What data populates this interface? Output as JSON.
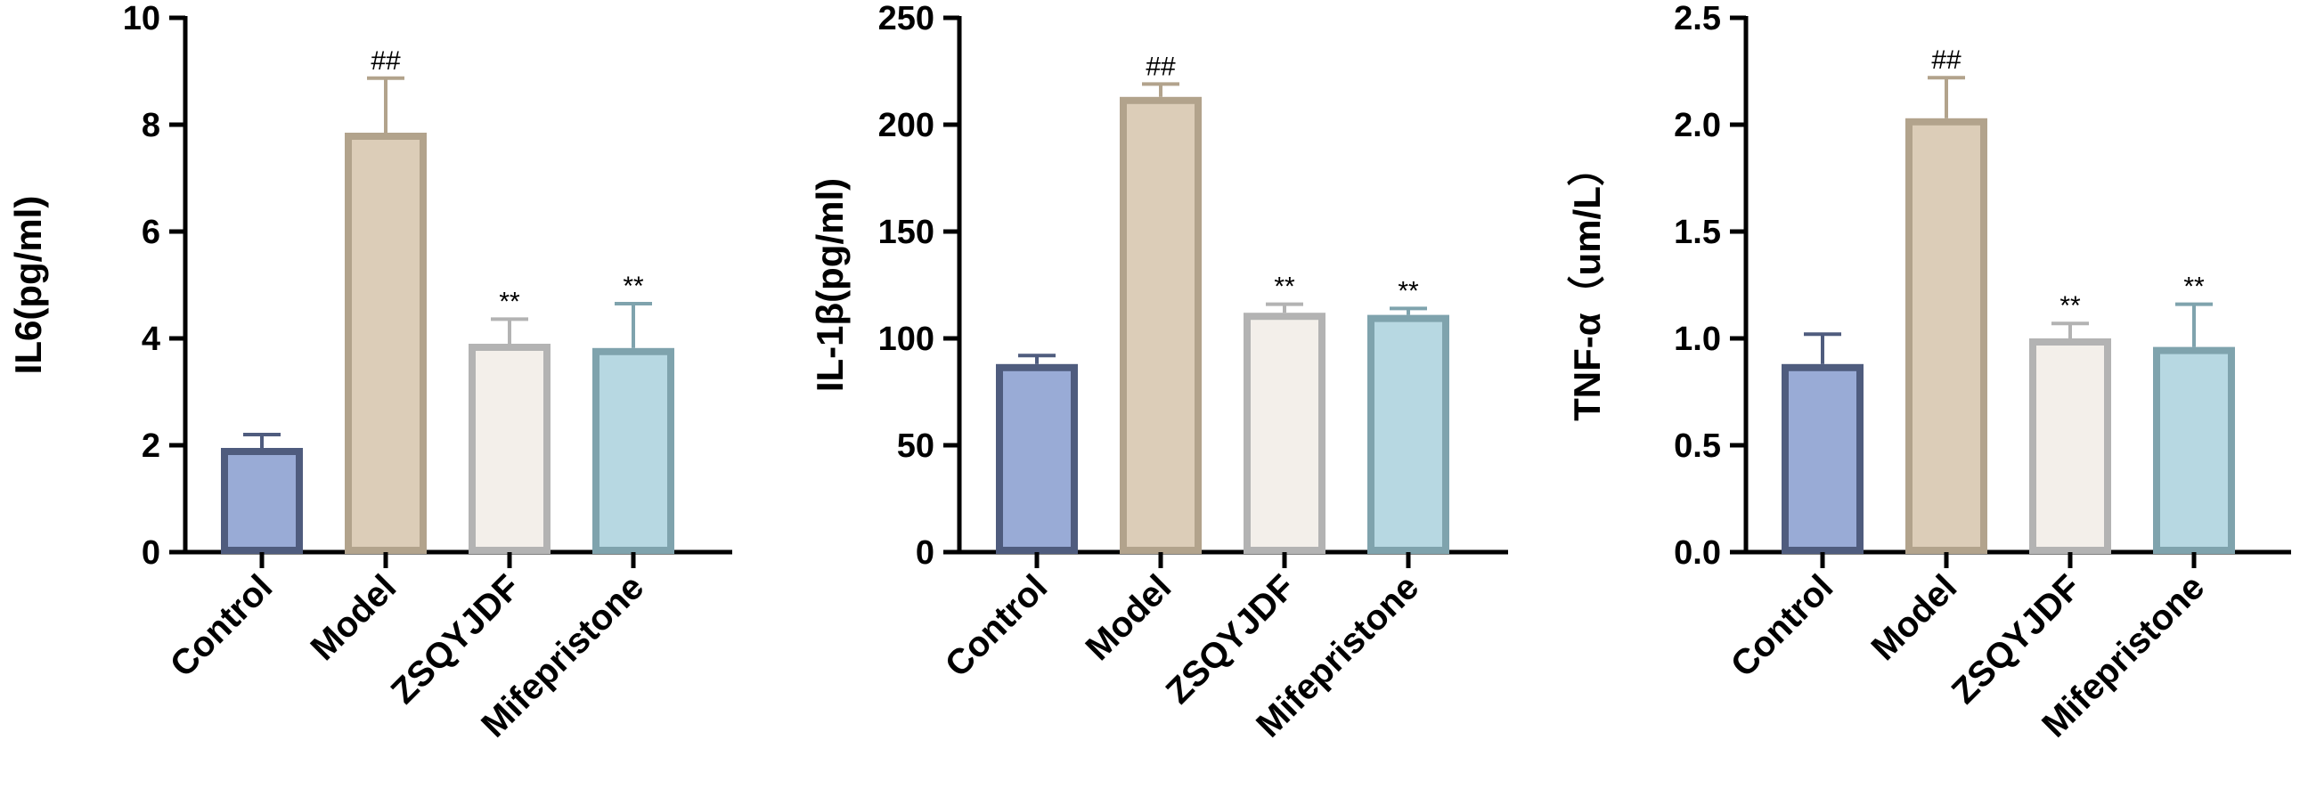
{
  "chart_data": [
    {
      "type": "bar",
      "ylabel": "IL6(pg/ml)",
      "ylim": [
        0,
        10
      ],
      "yticks": [
        0,
        2,
        4,
        6,
        8,
        10
      ],
      "ytick_labels": [
        "0",
        "2",
        "4",
        "6",
        "8",
        "10"
      ],
      "categories": [
        "Control",
        "Model",
        "ZSQYJDF",
        "Mifepristone"
      ],
      "values": [
        1.95,
        7.85,
        3.9,
        3.82
      ],
      "errors": [
        0.25,
        1.02,
        0.46,
        0.83
      ],
      "annotations": [
        "",
        "##",
        "**",
        "**"
      ],
      "grid": false,
      "legend": "none"
    },
    {
      "type": "bar",
      "ylabel": "IL-1β(pg/ml)",
      "ylim": [
        0,
        250
      ],
      "yticks": [
        0,
        50,
        100,
        150,
        200,
        250
      ],
      "ytick_labels": [
        "0",
        "50",
        "100",
        "150",
        "200",
        "250"
      ],
      "categories": [
        "Control",
        "Model",
        "ZSQYJDF",
        "Mifepristone"
      ],
      "values": [
        88,
        213,
        112,
        111
      ],
      "errors": [
        4,
        6,
        4,
        3
      ],
      "annotations": [
        "",
        "##",
        "**",
        "**"
      ],
      "grid": false,
      "legend": "none"
    },
    {
      "type": "bar",
      "ylabel": "TNF-α（um/L）",
      "ylim": [
        0,
        2.5
      ],
      "yticks": [
        0,
        0.5,
        1.0,
        1.5,
        2.0,
        2.5
      ],
      "ytick_labels": [
        "0.0",
        "0.5",
        "1.0",
        "1.5",
        "2.0",
        "2.5"
      ],
      "categories": [
        "Control",
        "Model",
        "ZSQYJDF",
        "Mifepristone"
      ],
      "values": [
        0.88,
        2.03,
        1.0,
        0.96
      ],
      "errors": [
        0.14,
        0.19,
        0.07,
        0.2
      ],
      "annotations": [
        "",
        "##",
        "**",
        "**"
      ],
      "grid": false,
      "legend": "none"
    }
  ],
  "colors": {
    "fills": [
      "#99abd6",
      "#dccdb8",
      "#f3efea",
      "#b7d8e2"
    ],
    "edges": [
      "#4f5c7e",
      "#b2a38c",
      "#b3b3b3",
      "#7fa3ad"
    ],
    "axis": "#000000"
  }
}
